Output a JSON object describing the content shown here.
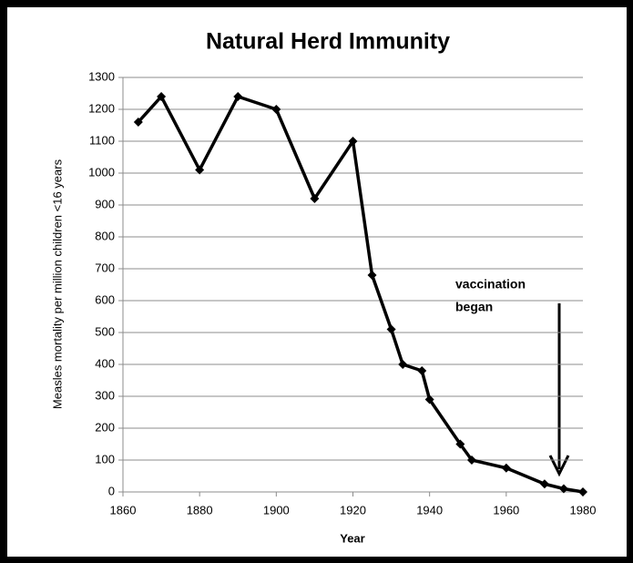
{
  "chart_data": {
    "type": "line",
    "title": "Natural Herd Immunity",
    "x_label": "Year",
    "y_label": "Measles mortality per million children <16 years",
    "x": [
      1864,
      1870,
      1880,
      1890,
      1900,
      1910,
      1920,
      1925,
      1930,
      1933,
      1938,
      1940,
      1948,
      1951,
      1960,
      1970,
      1975,
      1980
    ],
    "series": [
      {
        "name": "Measles mortality",
        "color": "#000000",
        "values": [
          1160,
          1240,
          1010,
          1240,
          1200,
          920,
          1100,
          680,
          510,
          400,
          380,
          290,
          150,
          100,
          75,
          25,
          10,
          0
        ]
      }
    ],
    "xlim": [
      1860,
      1980
    ],
    "xticks": [
      1860,
      1880,
      1900,
      1920,
      1940,
      1960,
      1980
    ],
    "ylim": [
      0,
      1300
    ],
    "yticks": [
      0,
      100,
      200,
      300,
      400,
      500,
      600,
      700,
      800,
      900,
      1000,
      1100,
      1200,
      1300
    ],
    "grid": true,
    "annotation": [
      "vaccination",
      "began"
    ]
  }
}
